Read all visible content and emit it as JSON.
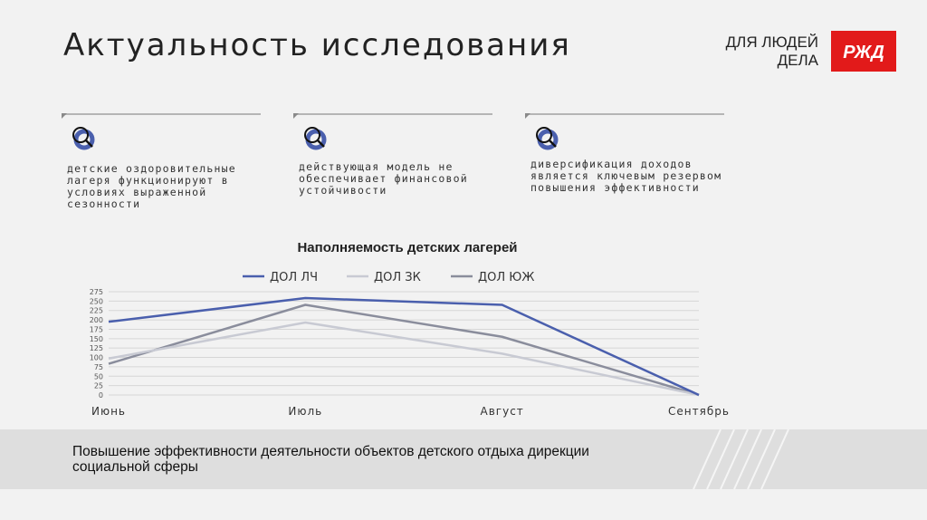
{
  "header": {
    "title": "Актуальность исследования",
    "slogan_line1": "ДЛЯ ЛЮДЕЙ",
    "slogan_line2": "ДЕЛА",
    "logo_text": "РЖД",
    "logo_color": "#e21a1a"
  },
  "cards": [
    {
      "icon": "search-icon",
      "text": "детские оздоровительные лагеря функционируют в условиях выраженной сезонности"
    },
    {
      "icon": "search-icon",
      "text": "действующая модель не обеспечивает финансовой устойчивости"
    },
    {
      "icon": "search-icon",
      "text": "диверсификация доходов является ключевым резервом повышения эффективности"
    }
  ],
  "chart_data": {
    "type": "line",
    "title": "Наполняемость детских лагерей",
    "categories": [
      "Июнь",
      "Июль",
      "Август",
      "Сентябрь"
    ],
    "y_ticks": [
      "0",
      "25",
      "50",
      "75",
      "100",
      "125",
      "150",
      "175",
      "200",
      "225",
      "250",
      "275"
    ],
    "ylim": [
      0,
      275
    ],
    "legend_position": "top",
    "grid": true,
    "series": [
      {
        "name": "ДОЛ ЛЧ",
        "values": [
          195,
          258,
          240,
          0
        ],
        "color": "#4a5fad"
      },
      {
        "name": "ДОЛ ЗК",
        "values": [
          97,
          193,
          110,
          0
        ],
        "color": "#c8cad3"
      },
      {
        "name": "ДОЛ ЮЖ",
        "values": [
          83,
          240,
          155,
          0
        ],
        "color": "#8a8d9c"
      }
    ]
  },
  "footer": {
    "text": "Повышение эффективности деятельности объектов детского отдыха дирекции социальной сферы"
  }
}
